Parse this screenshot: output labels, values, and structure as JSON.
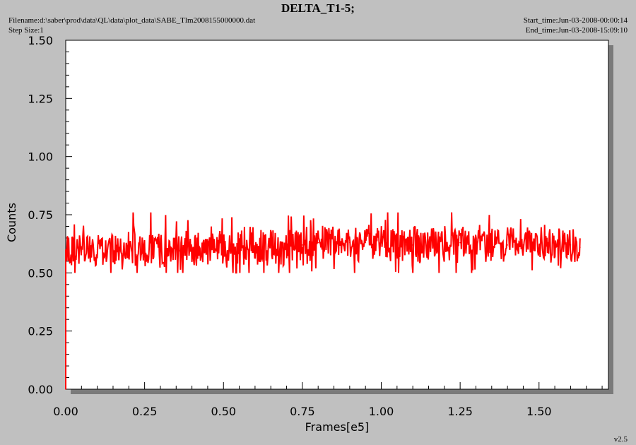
{
  "header": {
    "title": "DELTA_T1-5;",
    "filename": "Filename:d:\\saber\\prod\\data\\QL\\data\\plot_data\\SABE_Tlm2008155000000.dat",
    "step_size": "Step Size:1",
    "start_time": "Start_time:Jun-03-2008-00:00:14",
    "end_time": "End_time:Jun-03-2008-15:09:10"
  },
  "footer": {
    "version": "v2.5"
  },
  "colors": {
    "background": "#c0c0c0",
    "plot_area": "#ffffff",
    "series": "#ff0000"
  },
  "chart_data": {
    "type": "line",
    "title": "DELTA_T1-5;",
    "xlabel": "Frames[e5]",
    "ylabel": "Counts",
    "xlim": [
      0,
      1.72
    ],
    "ylim": [
      0,
      1.5
    ],
    "xticks": [
      "0.00",
      "0.25",
      "0.50",
      "0.75",
      "1.00",
      "1.25",
      "1.50"
    ],
    "yticks": [
      "0.00",
      "0.25",
      "0.50",
      "0.75",
      "1.00",
      "1.25",
      "1.50"
    ],
    "grid": false,
    "legend": "none",
    "series": [
      {
        "color": "#ff0000",
        "x": [
          0.0,
          0.0,
          0.005,
          0.02,
          0.05,
          0.1,
          0.15,
          0.2,
          0.215,
          0.22,
          0.25,
          0.3,
          0.35,
          0.4,
          0.45,
          0.5,
          0.55,
          0.6,
          0.65,
          0.7,
          0.75,
          0.8,
          0.85,
          0.9,
          0.95,
          1.0,
          1.05,
          1.08,
          1.1,
          1.15,
          1.2,
          1.25,
          1.3,
          1.35,
          1.4,
          1.45,
          1.5,
          1.55,
          1.6,
          1.63
        ],
        "y": [
          0.0,
          0.6,
          0.6,
          0.6,
          0.6,
          0.6,
          0.6,
          0.6,
          0.75,
          0.6,
          0.6,
          0.6,
          0.6,
          0.6,
          0.6,
          0.6,
          0.61,
          0.61,
          0.62,
          0.62,
          0.62,
          0.63,
          0.63,
          0.63,
          0.63,
          0.63,
          0.62,
          0.62,
          0.62,
          0.62,
          0.62,
          0.63,
          0.63,
          0.63,
          0.62,
          0.62,
          0.62,
          0.62,
          0.62,
          0.61
        ]
      }
    ]
  }
}
